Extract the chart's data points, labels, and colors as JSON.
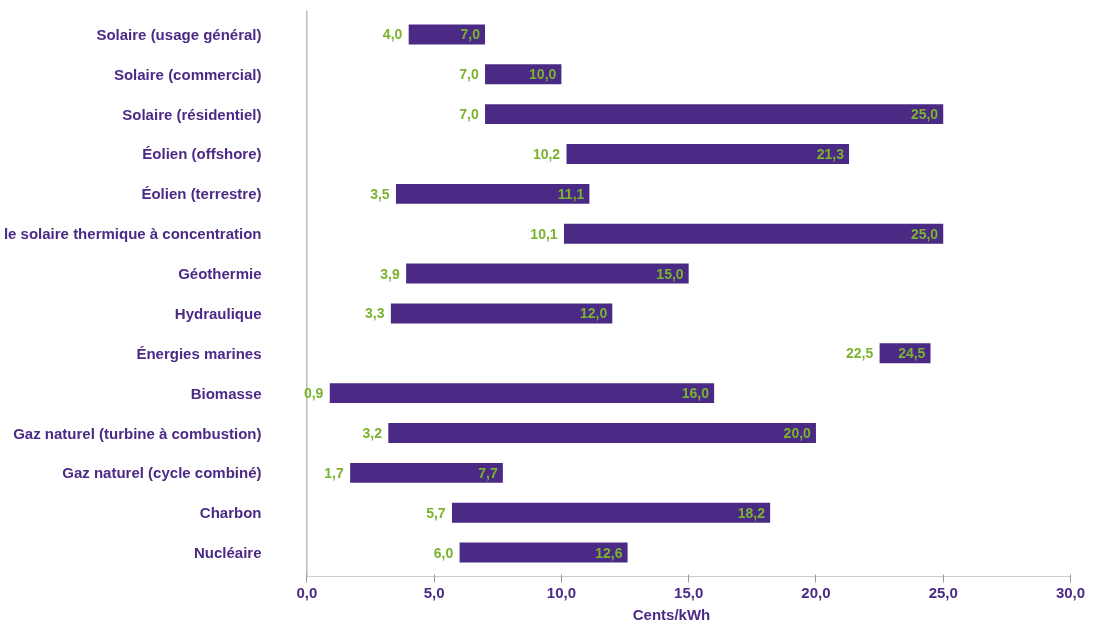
{
  "chart_data": {
    "type": "bar",
    "orientation": "horizontal",
    "xlabel": "Cents/kWh",
    "categories": [
      "Solaire (usage général)",
      "Solaire (commercial)",
      "Solaire (résidentiel)",
      "Éolien (offshore)",
      "Éolien (terrestre)",
      "le solaire thermique à concentration",
      "Géothermie",
      "Hydraulique",
      "Énergies marines",
      "Biomasse",
      "Gaz naturel (turbine à combustion)",
      "Gaz naturel (cycle combiné)",
      "Charbon",
      "Nucléaire"
    ],
    "base": [
      4.0,
      7.0,
      7.0,
      10.2,
      3.5,
      10.1,
      3.9,
      3.3,
      22.5,
      0.9,
      3.2,
      1.7,
      5.7,
      6.0
    ],
    "values": [
      3.0,
      3.0,
      18.0,
      11.1,
      7.6,
      14.9,
      11.1,
      8.7,
      2.0,
      15.1,
      16.8,
      6.0,
      12.5,
      6.6
    ],
    "value_labels": [
      "7,0",
      "10,0",
      "25,0",
      "21,3",
      "11,1",
      "25,0",
      "15,0",
      "12,0",
      "24,5",
      "16,0",
      "20,0",
      "7,7",
      "18,2",
      "12,6"
    ],
    "color": "#4b2a86",
    "annotations": [
      {
        "text": "4,0",
        "x": 4.0,
        "y": "Solaire (usage général)"
      },
      {
        "text": "7,0",
        "x": 7.0,
        "y": "Solaire (commercial)"
      },
      {
        "text": "7,0",
        "x": 7.0,
        "y": "Solaire (résidentiel)"
      },
      {
        "text": "10,2",
        "x": 10.2,
        "y": "Éolien (offshore)"
      },
      {
        "text": "3,5",
        "x": 3.5,
        "y": "Éolien (terrestre)"
      },
      {
        "text": "10,1",
        "x": 10.1,
        "y": "le solaire thermique à concentration"
      },
      {
        "text": "3,9",
        "x": 3.9,
        "y": "Géothermie"
      },
      {
        "text": "3,3",
        "x": 3.3,
        "y": "Hydraulique"
      },
      {
        "text": "22,5",
        "x": 22.5,
        "y": "Énergies marines"
      },
      {
        "text": "0,9",
        "x": 0.9,
        "y": "Biomasse"
      },
      {
        "text": "3,2",
        "x": 3.2,
        "y": "Gaz naturel (turbine à combustion)"
      },
      {
        "text": "1,7",
        "x": 1.7,
        "y": "Gaz naturel (cycle combiné)"
      },
      {
        "text": "5,7",
        "x": 5.7,
        "y": "Charbon"
      },
      {
        "text": "6,0",
        "x": 6.0,
        "y": "Nucléaire"
      }
    ],
    "xlim": [
      0,
      30
    ],
    "xticks": [
      {
        "value": 0,
        "label": "0,0"
      },
      {
        "value": 5,
        "label": "5,0"
      },
      {
        "value": 10,
        "label": "10,0"
      },
      {
        "value": 15,
        "label": "15,0"
      },
      {
        "value": 20,
        "label": "20,0"
      },
      {
        "value": 25,
        "label": "25,0"
      },
      {
        "value": 30,
        "label": "30,0"
      }
    ],
    "grid": false
  }
}
